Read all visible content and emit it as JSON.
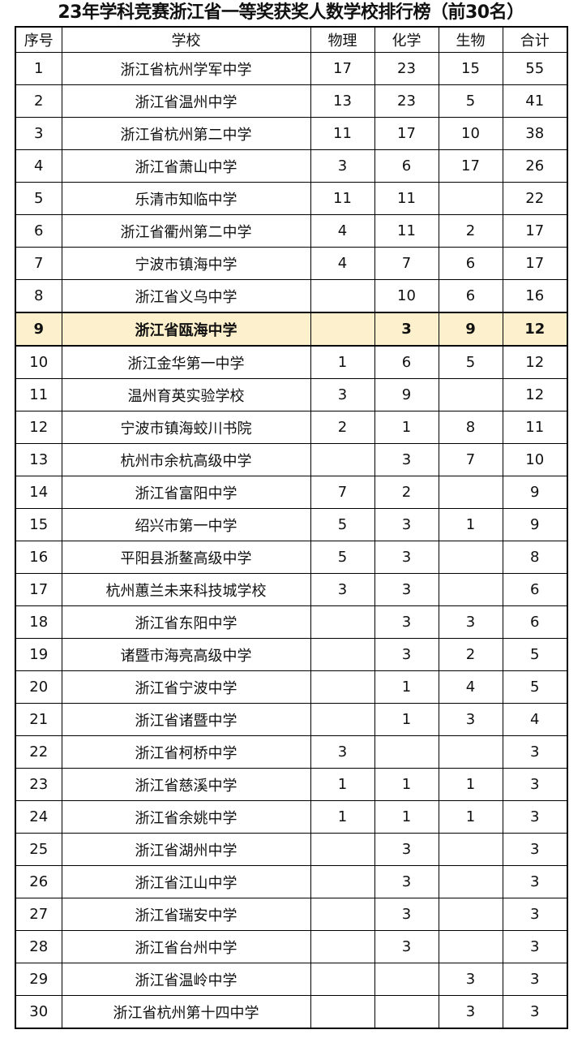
{
  "title": "23年学科竞赛浙江省一等奖获奖人数学校排行榜（前30名）",
  "highlight_color": "#fdf0cc",
  "highlight_rank": "9",
  "headers": [
    "序号",
    "学校",
    "物理",
    "化学",
    "生物",
    "合计"
  ],
  "rows": [
    [
      "1",
      "浙江省杭州学军中学",
      "17",
      "23",
      "15",
      "55"
    ],
    [
      "2",
      "浙江省温州中学",
      "13",
      "23",
      "5",
      "41"
    ],
    [
      "3",
      "浙江省杭州第二中学",
      "11",
      "17",
      "10",
      "38"
    ],
    [
      "4",
      "浙江省萧山中学",
      "3",
      "6",
      "17",
      "26"
    ],
    [
      "5",
      "乐清市知临中学",
      "11",
      "11",
      "",
      "22"
    ],
    [
      "6",
      "浙江省衢州第二中学",
      "4",
      "11",
      "2",
      "17"
    ],
    [
      "7",
      "宁波市镇海中学",
      "4",
      "7",
      "6",
      "17"
    ],
    [
      "8",
      "浙江省义乌中学",
      "",
      "10",
      "6",
      "16"
    ],
    [
      "9",
      "浙江省瓯海中学",
      "",
      "3",
      "9",
      "12"
    ],
    [
      "10",
      "浙江金华第一中学",
      "1",
      "6",
      "5",
      "12"
    ],
    [
      "11",
      "温州育英实验学校",
      "3",
      "9",
      "",
      "12"
    ],
    [
      "12",
      "宁波市镇海蛟川书院",
      "2",
      "1",
      "8",
      "11"
    ],
    [
      "13",
      "杭州市余杭高级中学",
      "",
      "3",
      "7",
      "10"
    ],
    [
      "14",
      "浙江省富阳中学",
      "7",
      "2",
      "",
      "9"
    ],
    [
      "15",
      "绍兴市第一中学",
      "5",
      "3",
      "1",
      "9"
    ],
    [
      "16",
      "平阳县浙鳌高级中学",
      "5",
      "3",
      "",
      "8"
    ],
    [
      "17",
      "杭州蕙兰未来科技城学校",
      "3",
      "3",
      "",
      "6"
    ],
    [
      "18",
      "浙江省东阳中学",
      "",
      "3",
      "3",
      "6"
    ],
    [
      "19",
      "诸暨市海亮高级中学",
      "",
      "3",
      "2",
      "5"
    ],
    [
      "20",
      "浙江省宁波中学",
      "",
      "1",
      "4",
      "5"
    ],
    [
      "21",
      "浙江省诸暨中学",
      "",
      "1",
      "3",
      "4"
    ],
    [
      "22",
      "浙江省柯桥中学",
      "3",
      "",
      "",
      "3"
    ],
    [
      "23",
      "浙江省慈溪中学",
      "1",
      "1",
      "1",
      "3"
    ],
    [
      "24",
      "浙江省余姚中学",
      "1",
      "1",
      "1",
      "3"
    ],
    [
      "25",
      "浙江省湖州中学",
      "",
      "3",
      "",
      "3"
    ],
    [
      "26",
      "浙江省江山中学",
      "",
      "3",
      "",
      "3"
    ],
    [
      "27",
      "浙江省瑞安中学",
      "",
      "3",
      "",
      "3"
    ],
    [
      "28",
      "浙江省台州中学",
      "",
      "3",
      "",
      "3"
    ],
    [
      "29",
      "浙江省温岭中学",
      "",
      "",
      "3",
      "3"
    ],
    [
      "30",
      "浙江省杭州第十四中学",
      "",
      "",
      "3",
      "3"
    ]
  ]
}
